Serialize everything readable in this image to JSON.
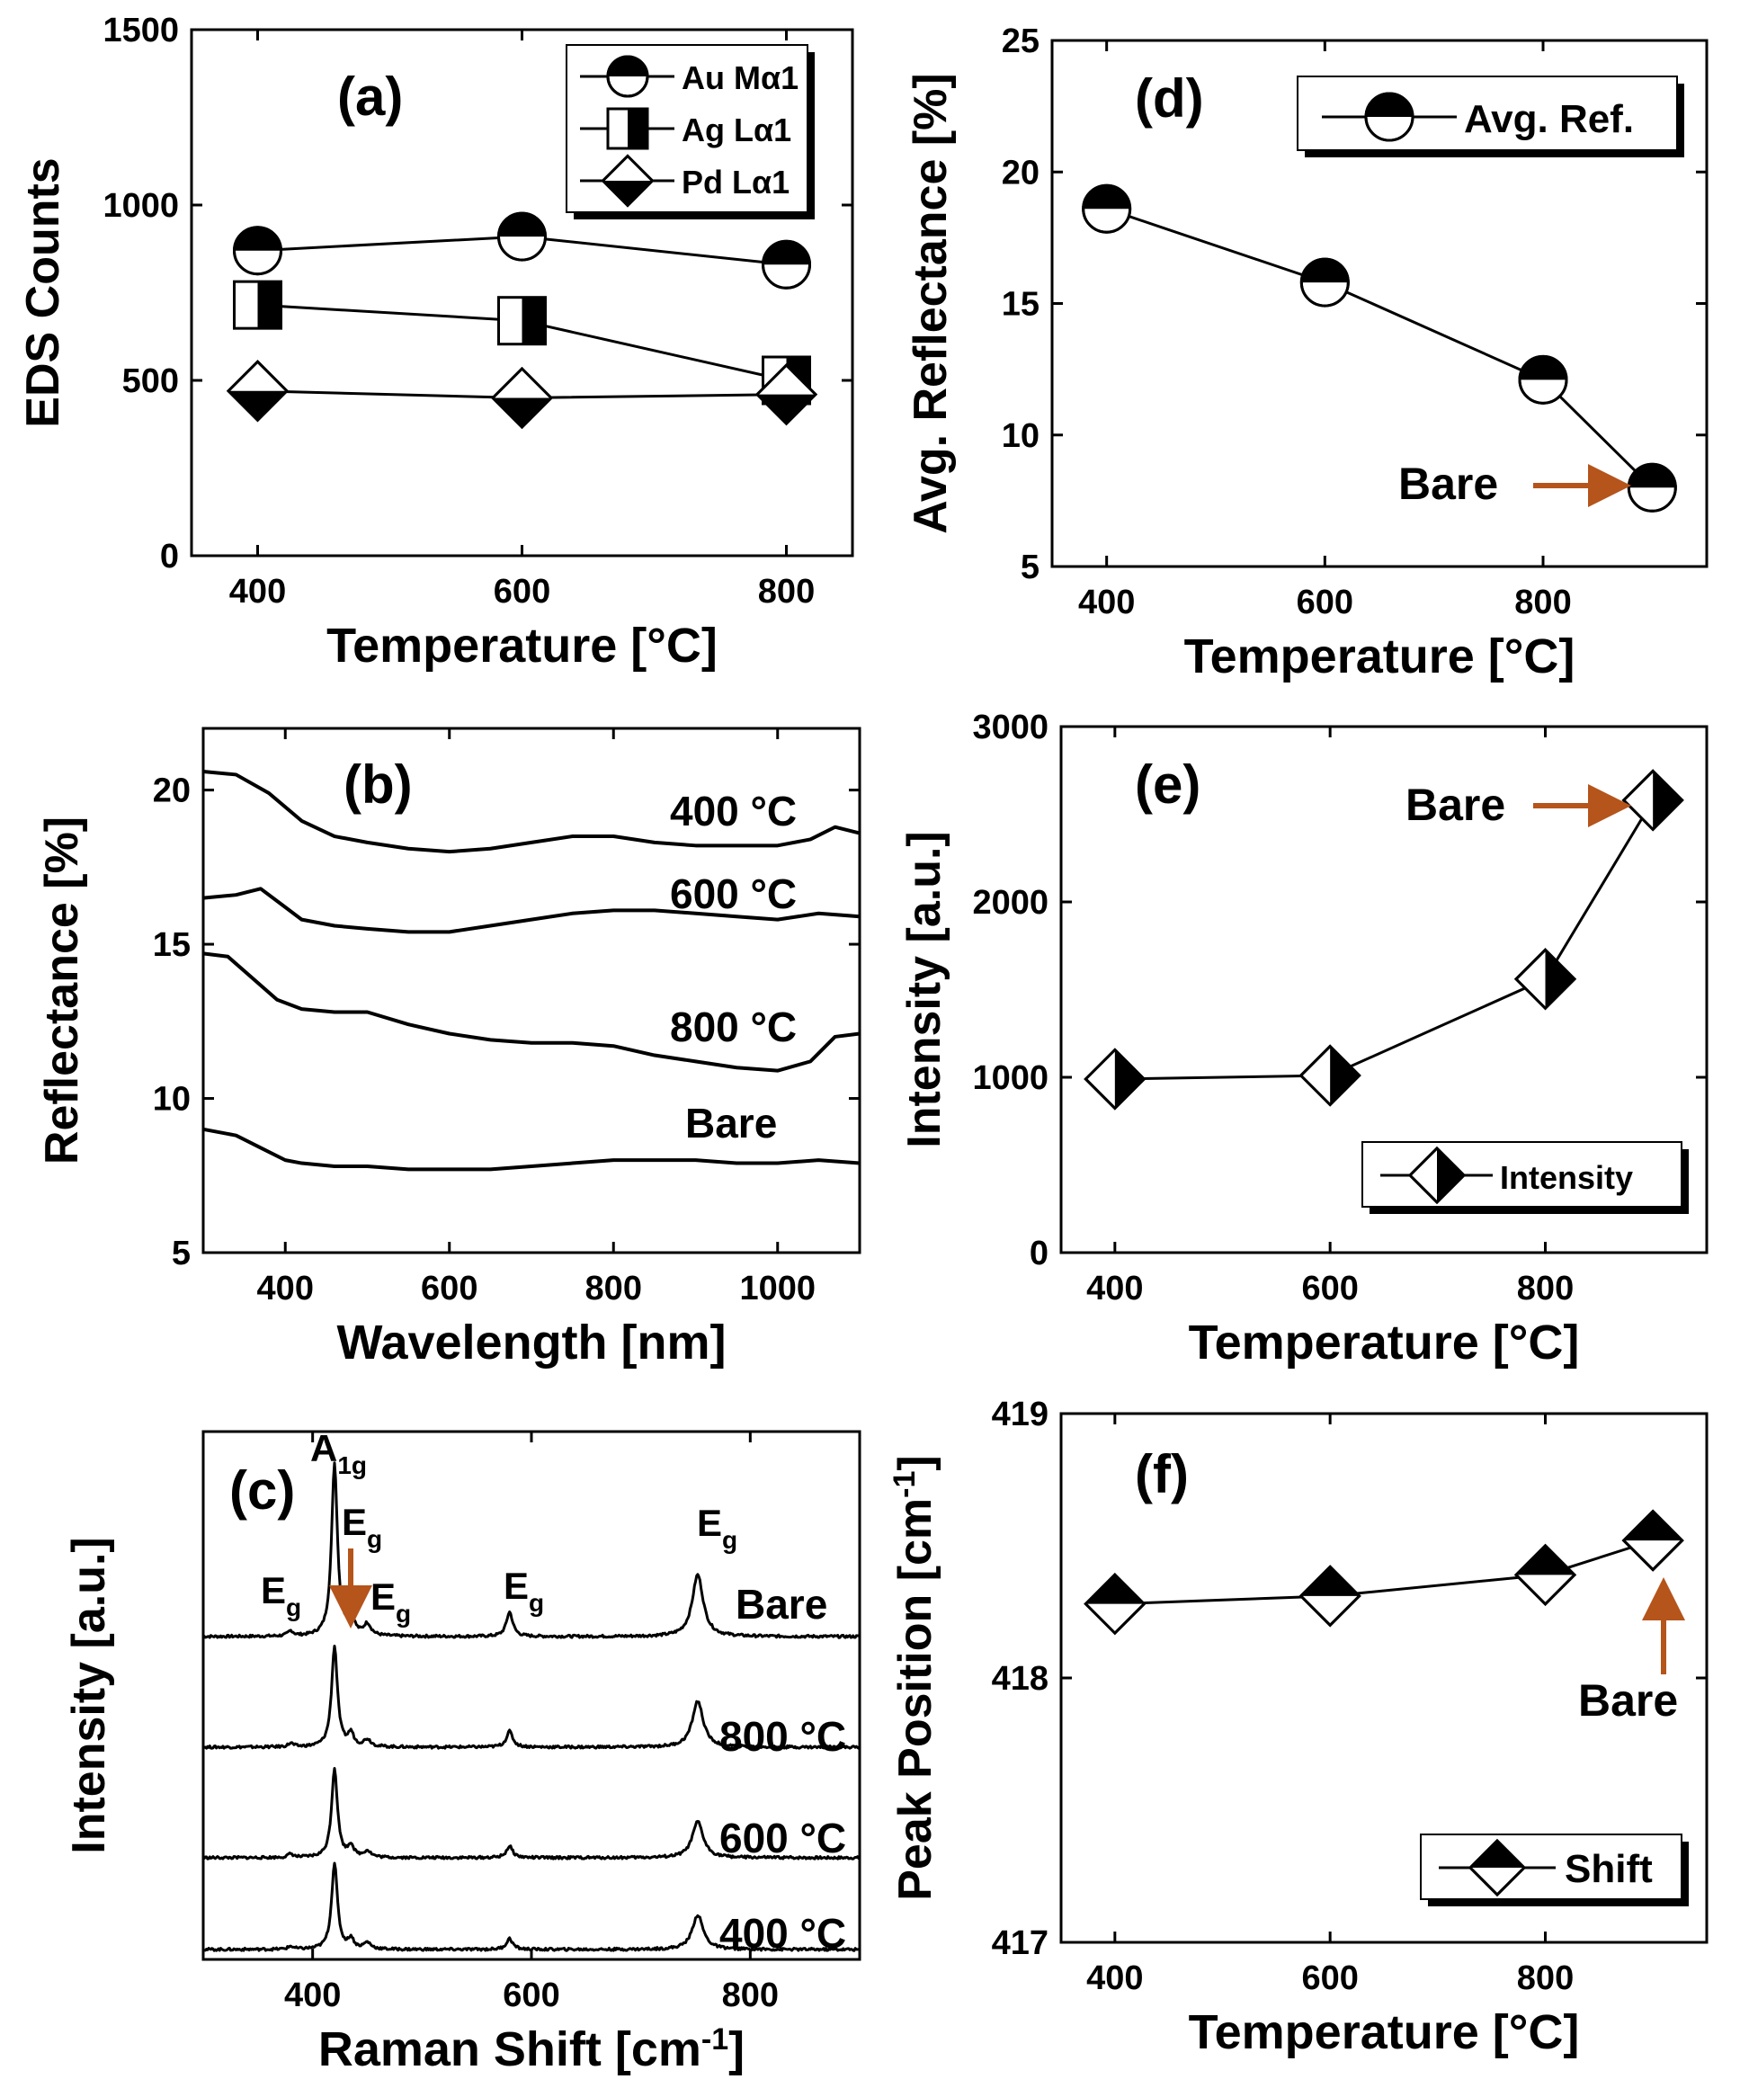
{
  "colors": {
    "axis": "#000000",
    "arrow": "#b5541b",
    "background": "#ffffff"
  },
  "chart_data": [
    {
      "id": "a",
      "type": "line",
      "panel_label": "(a)",
      "xlabel": "Temperature [°C]",
      "ylabel": "EDS Counts",
      "xlim": [
        350,
        850
      ],
      "ylim": [
        0,
        1500
      ],
      "xticks": [
        400,
        600,
        800
      ],
      "yticks": [
        0,
        500,
        1000,
        1500
      ],
      "legend_position": "top-right",
      "series": [
        {
          "name": "Au Mα1",
          "marker": "circle-half-top",
          "x": [
            400,
            600,
            800
          ],
          "y": [
            870,
            910,
            830
          ]
        },
        {
          "name": "Ag Lα1",
          "marker": "square-half-right",
          "x": [
            400,
            600,
            800
          ],
          "y": [
            715,
            670,
            500
          ]
        },
        {
          "name": "Pd Lα1",
          "marker": "diamond-half-bottom",
          "x": [
            400,
            600,
            800
          ],
          "y": [
            470,
            450,
            460
          ]
        }
      ]
    },
    {
      "id": "b",
      "type": "line",
      "panel_label": "(b)",
      "xlabel": "Wavelength [nm]",
      "ylabel": "Reflectance [%]",
      "xlim": [
        300,
        1100
      ],
      "ylim": [
        5,
        22
      ],
      "xticks": [
        400,
        600,
        800,
        1000
      ],
      "yticks": [
        5,
        10,
        15,
        20
      ],
      "series": [
        {
          "name": "400 °C",
          "x": [
            300,
            340,
            380,
            420,
            460,
            500,
            550,
            600,
            650,
            700,
            750,
            800,
            850,
            900,
            950,
            1000,
            1040,
            1070,
            1100
          ],
          "y": [
            20.6,
            20.5,
            19.9,
            19.0,
            18.5,
            18.3,
            18.1,
            18.0,
            18.1,
            18.3,
            18.5,
            18.5,
            18.3,
            18.2,
            18.2,
            18.2,
            18.4,
            18.8,
            18.6
          ]
        },
        {
          "name": "600 °C",
          "x": [
            300,
            340,
            370,
            400,
            420,
            460,
            500,
            550,
            600,
            650,
            700,
            750,
            800,
            850,
            900,
            950,
            1000,
            1050,
            1100
          ],
          "y": [
            16.5,
            16.6,
            16.8,
            16.2,
            15.8,
            15.6,
            15.5,
            15.4,
            15.4,
            15.6,
            15.8,
            16.0,
            16.1,
            16.1,
            16.0,
            15.9,
            15.8,
            16.0,
            15.9
          ]
        },
        {
          "name": "800 °C",
          "x": [
            300,
            330,
            360,
            390,
            420,
            460,
            500,
            550,
            600,
            650,
            700,
            750,
            800,
            850,
            900,
            950,
            1000,
            1040,
            1070,
            1100
          ],
          "y": [
            14.7,
            14.6,
            13.9,
            13.2,
            12.9,
            12.8,
            12.8,
            12.4,
            12.1,
            11.9,
            11.8,
            11.8,
            11.7,
            11.4,
            11.2,
            11.0,
            10.9,
            11.2,
            12.0,
            12.1
          ]
        },
        {
          "name": "Bare",
          "x": [
            300,
            340,
            370,
            400,
            420,
            460,
            500,
            550,
            600,
            650,
            700,
            750,
            800,
            850,
            900,
            950,
            1000,
            1050,
            1100
          ],
          "y": [
            9.0,
            8.8,
            8.4,
            8.0,
            7.9,
            7.8,
            7.8,
            7.7,
            7.7,
            7.7,
            7.8,
            7.9,
            8.0,
            8.0,
            8.0,
            7.9,
            7.9,
            8.0,
            7.9
          ]
        }
      ]
    },
    {
      "id": "c",
      "type": "line",
      "panel_label": "(c)",
      "xlabel": "Raman Shift [cm-1]",
      "ylabel": "Intensity [a.u.]",
      "xlim": [
        300,
        900
      ],
      "xticks": [
        400,
        600,
        800
      ],
      "peaks_cm1": [
        380,
        420,
        435,
        450,
        580,
        752
      ],
      "series": [
        {
          "name": "Bare",
          "baseline": 0,
          "amps": [
            0.35,
            12.0,
            1.6,
            0.8,
            1.7,
            4.3
          ]
        },
        {
          "name": "800 °C",
          "baseline": 1,
          "amps": [
            0.25,
            7.0,
            0.9,
            0.5,
            1.1,
            3.2
          ]
        },
        {
          "name": "600 °C",
          "baseline": 2,
          "amps": [
            0.25,
            6.2,
            0.8,
            0.45,
            0.8,
            2.5
          ]
        },
        {
          "name": "400 °C",
          "baseline": 3,
          "amps": [
            0.2,
            6.0,
            0.7,
            0.45,
            0.75,
            2.4
          ]
        }
      ],
      "annotations": [
        {
          "main": "A",
          "sub": "1g"
        },
        {
          "main": "E",
          "sub": "g"
        },
        {
          "main": "E",
          "sub": "g"
        },
        {
          "main": "E",
          "sub": "g"
        },
        {
          "main": "E",
          "sub": "g"
        },
        {
          "main": "E",
          "sub": "g"
        }
      ]
    },
    {
      "id": "d",
      "type": "line",
      "panel_label": "(d)",
      "xlabel": "Temperature [°C]",
      "ylabel": "Avg. Reflectance [%]",
      "xlim": [
        350,
        950
      ],
      "ylim": [
        5,
        25
      ],
      "xticks": [
        400,
        600,
        800
      ],
      "yticks": [
        5,
        10,
        15,
        20,
        25
      ],
      "legend_position": "top-right",
      "series": [
        {
          "name": "Avg. Ref.",
          "marker": "circle-half-top",
          "x": [
            400,
            600,
            800,
            900
          ],
          "y": [
            18.6,
            15.8,
            12.1,
            8.0
          ]
        }
      ],
      "annotation": "Bare"
    },
    {
      "id": "e",
      "type": "line",
      "panel_label": "(e)",
      "xlabel": "Temperature [°C]",
      "ylabel": "Intensity [a.u.]",
      "xlim": [
        350,
        950
      ],
      "ylim": [
        0,
        3000
      ],
      "xticks": [
        400,
        600,
        800
      ],
      "yticks": [
        0,
        1000,
        2000,
        3000
      ],
      "legend_position": "bottom-right",
      "series": [
        {
          "name": "Intensity",
          "marker": "diamond-half-right",
          "x": [
            400,
            600,
            800,
            900
          ],
          "y": [
            990,
            1010,
            1560,
            2580
          ]
        }
      ],
      "annotation": "Bare"
    },
    {
      "id": "f",
      "type": "line",
      "panel_label": "(f)",
      "xlabel": "Temperature [°C]",
      "ylabel": "Peak Position [cm-1]",
      "xlim": [
        350,
        950
      ],
      "ylim": [
        417,
        419
      ],
      "xticks": [
        400,
        600,
        800
      ],
      "yticks": [
        417,
        418,
        419
      ],
      "legend_position": "bottom-right",
      "series": [
        {
          "name": "Shift",
          "marker": "diamond-half-top",
          "x": [
            400,
            600,
            800,
            900
          ],
          "y": [
            418.28,
            418.31,
            418.39,
            418.52
          ]
        }
      ],
      "annotation": "Bare"
    }
  ]
}
